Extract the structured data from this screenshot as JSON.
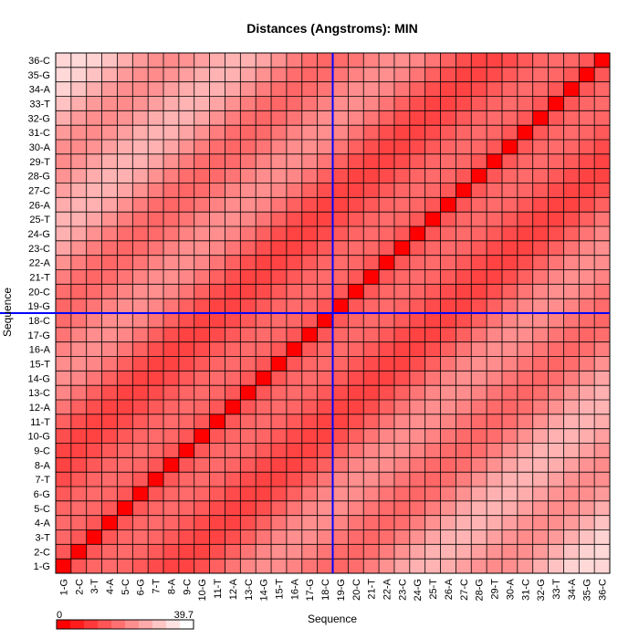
{
  "chart_data": {
    "type": "heatmap",
    "title": "Distances (Angstroms):  MIN",
    "xlabel": "Sequence",
    "ylabel": "Sequence",
    "labels": [
      "1-G",
      "2-C",
      "3-T",
      "4-A",
      "5-C",
      "6-G",
      "7-T",
      "8-A",
      "9-C",
      "10-G",
      "11-T",
      "12-A",
      "13-C",
      "14-G",
      "15-T",
      "16-A",
      "17-G",
      "18-C",
      "19-G",
      "20-C",
      "21-T",
      "22-A",
      "23-C",
      "24-G",
      "25-T",
      "26-A",
      "27-C",
      "28-G",
      "29-T",
      "30-A",
      "31-C",
      "32-G",
      "33-T",
      "34-A",
      "35-G",
      "36-C"
    ],
    "color_scale": {
      "min": 0,
      "max": 39.7,
      "min_label": "0",
      "max_label": "39.7",
      "low_color": "#ff0000",
      "high_color": "#ffffff"
    },
    "symmetric": true,
    "crosshair": {
      "x": "18-C",
      "y": "18-C",
      "color": "#0000ff"
    },
    "gridlines": true,
    "legend_placement": "bottom-left"
  }
}
